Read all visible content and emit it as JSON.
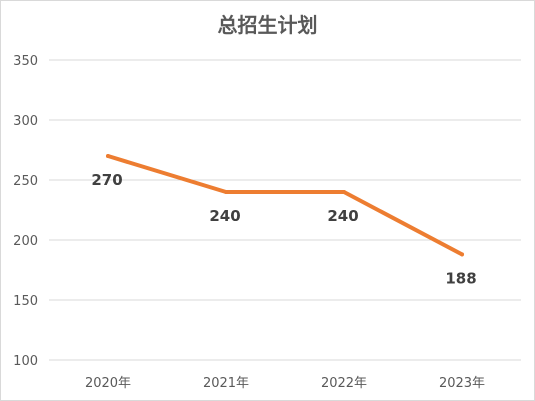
{
  "chart_data": {
    "type": "line",
    "title": "总招生计划",
    "categories": [
      "2020年",
      "2021年",
      "2022年",
      "2023年"
    ],
    "series": [
      {
        "values": [
          270,
          240,
          240,
          188
        ],
        "color": "#ED7D31"
      }
    ],
    "data_labels": [
      "270",
      "240",
      "240",
      "188"
    ],
    "yticks": [
      "100",
      "150",
      "200",
      "250",
      "300",
      "350"
    ],
    "ylim": [
      100,
      350
    ],
    "grid": true,
    "legend": "none"
  }
}
